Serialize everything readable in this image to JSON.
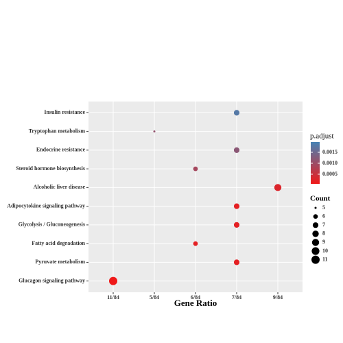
{
  "chart_data": {
    "type": "dot",
    "x_label": "Gene Ratio",
    "x_categories": [
      "11/84",
      "5/84",
      "6/84",
      "7/84",
      "9/84"
    ],
    "categories": [
      "Insulin resistance",
      "Tryptophan metabolism",
      "Endocrine resistance",
      "Steroid hormone biosynthesis",
      "Alcoholic liver disease",
      "Adipocytokine signaling pathway",
      "Glycolysis / Gluconeogenesis",
      "Fatty acid degradation",
      "Pyruvate metabolism",
      "Glucagon signaling pathway"
    ],
    "x": [
      "7/84",
      "5/84",
      "7/84",
      "6/84",
      "9/84",
      "7/84",
      "7/84",
      "6/84",
      "7/84",
      "11/84"
    ],
    "sizes": [
      7,
      5,
      7,
      6,
      9,
      7,
      7,
      6,
      7,
      11
    ],
    "color_values": [
      0.0018,
      0.0011,
      0.0012,
      0.0009,
      0.0003,
      0.0002,
      0.0002,
      0.0002,
      0.0002,
      7e-05
    ],
    "color_title": "p.adjust",
    "colorlim": [
      6e-05,
      0.00197
    ],
    "colorticks": [
      0.0005,
      {
        "value": 0.001,
        "label": "0.0010"
      },
      0.0015
    ],
    "color_low": "#f01818",
    "color_high": "#4682b4",
    "size_title": "Count",
    "size_ticks": [
      5,
      6,
      7,
      8,
      9,
      10,
      11
    ],
    "grid": true
  }
}
